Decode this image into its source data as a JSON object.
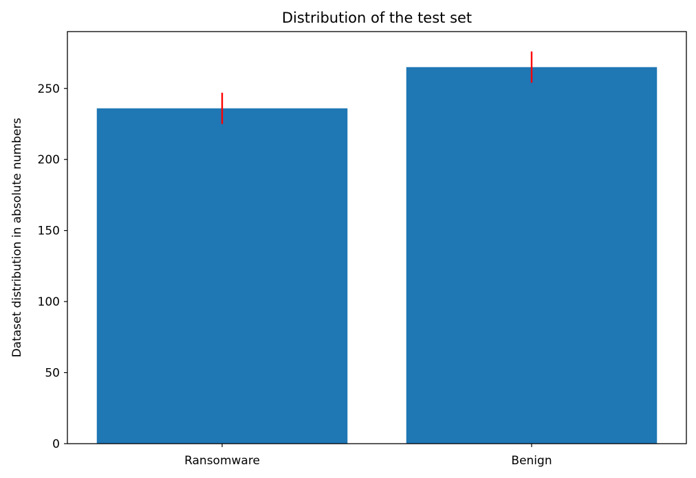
{
  "chart_data": {
    "type": "bar",
    "title": "Distribution of the test set",
    "xlabel": "",
    "ylabel": "Dataset distribution in absolute numbers",
    "categories": [
      "Ransomware",
      "Benign"
    ],
    "values": [
      236,
      265
    ],
    "error_bars": [
      11,
      11
    ],
    "ylim": [
      0,
      290
    ],
    "yticks": [
      0,
      50,
      100,
      150,
      200,
      250
    ],
    "ytick_labels": [
      "0",
      "50",
      "100",
      "150",
      "200",
      "250"
    ],
    "grid": false,
    "colors": {
      "bar": "#1f77b4",
      "error_bar": "#ff0000",
      "axis": "#000000"
    }
  }
}
